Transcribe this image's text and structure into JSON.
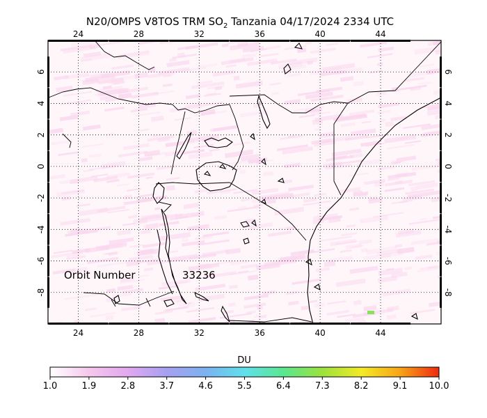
{
  "title": {
    "prefix": "N20/OMPS V8TOS TRM SO",
    "subscript": "2",
    "suffix": " Tanzania 04/17/2024 2334 UTC"
  },
  "map": {
    "lon_range": [
      22,
      48
    ],
    "lat_range": [
      -10,
      8
    ],
    "lon_ticks": [
      24,
      28,
      32,
      36,
      40,
      44
    ],
    "lat_ticks": [
      6,
      4,
      2,
      0,
      -2,
      -4,
      -6,
      -8
    ],
    "lon_labels": [
      "24",
      "28",
      "32",
      "36",
      "40",
      "44"
    ],
    "lat_labels": [
      "6",
      "4",
      "2",
      "0",
      "-2",
      "-4",
      "-6",
      "-8"
    ],
    "grid": true,
    "background": "#fff6fa",
    "swath_color": "#f9d6ee",
    "hotspot_color": "#88e35a"
  },
  "annotations": {
    "orbit_label": "Orbit Number",
    "orbit_value": "33236"
  },
  "colorbar": {
    "title": "DU",
    "range": [
      1.0,
      10.0
    ],
    "tick_values": [
      1.0,
      1.9,
      2.8,
      3.7,
      4.6,
      5.5,
      6.4,
      7.3,
      8.2,
      9.1,
      10.0
    ],
    "tick_labels": [
      "1.0",
      "1.9",
      "2.8",
      "3.7",
      "4.6",
      "5.5",
      "6.4",
      "7.3",
      "8.2",
      "9.1",
      "10.0"
    ],
    "stops": [
      "#ffffff",
      "#f4c8ec",
      "#e2a8f0",
      "#a6a0f0",
      "#7cb2f0",
      "#60e0ec",
      "#5ae690",
      "#9ce23c",
      "#f2ea28",
      "#f8a418",
      "#ee2a10"
    ]
  }
}
